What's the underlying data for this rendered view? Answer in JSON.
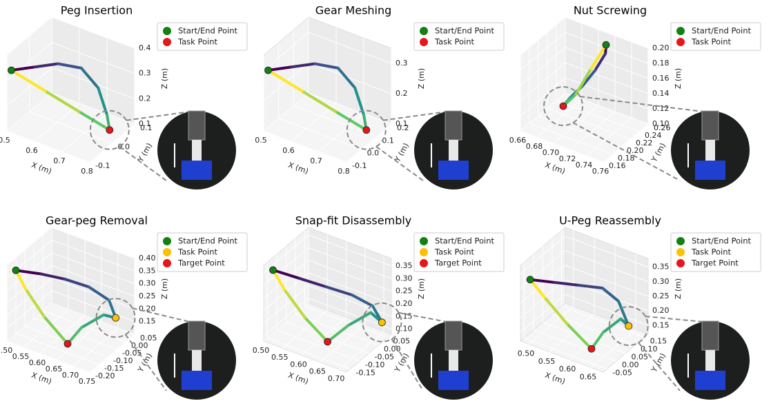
{
  "chart_data": [
    {
      "type": "line3d",
      "title": "Peg Insertion",
      "xlabel": "X (m)",
      "ylabel": "Y (m)",
      "zlabel": "Z (m)",
      "colormap": "viridis",
      "xlim": [
        0.5,
        0.8
      ],
      "ylim": [
        -0.1,
        0.1
      ],
      "zlim": [
        0.1,
        0.4
      ],
      "xticks": [
        0.5,
        0.6,
        0.7,
        0.8
      ],
      "yticks": [
        -0.1,
        {
          "value": 0,
          "label": "0.0"
        },
        0.1
      ],
      "zticks": [
        0.1,
        0.2,
        0.3,
        0.4
      ],
      "x": [
        0.5,
        0.56,
        0.62,
        0.68,
        0.725,
        0.749,
        0.755,
        0.68,
        0.59,
        0.5
      ],
      "y": [
        -0.08,
        -0.05,
        -0.02,
        0.01,
        0.03,
        0.04,
        0.044,
        0.0,
        -0.04,
        -0.08
      ],
      "z": [
        0.325,
        0.34,
        0.355,
        0.34,
        0.265,
        0.16,
        0.1,
        0.175,
        0.25,
        0.325
      ],
      "points": [
        {
          "name": "Start/End Point",
          "color": "#128012",
          "x": 0.5,
          "y": -0.08,
          "z": 0.325
        },
        {
          "name": "Task Point",
          "color": "#e8161b",
          "x": 0.755,
          "y": 0.044,
          "z": 0.1
        }
      ]
    },
    {
      "type": "line3d",
      "title": "Gear Meshing",
      "xlabel": "X (m)",
      "ylabel": "Y (m)",
      "zlabel": "Z (m)",
      "colormap": "viridis",
      "xlim": [
        0.5,
        0.8
      ],
      "ylim": [
        -0.1,
        0.2
      ],
      "zlim": [
        0.1,
        0.35
      ],
      "xticks": [
        0.5,
        0.6,
        0.7,
        0.8
      ],
      "yticks": [
        -0.1,
        {
          "value": 0,
          "label": "0.0"
        },
        0.1,
        0.2
      ],
      "zticks": [
        0.1,
        0.2,
        0.3
      ],
      "x": [
        0.5,
        0.56,
        0.62,
        0.68,
        0.725,
        0.749,
        0.755,
        0.68,
        0.59,
        0.5
      ],
      "y": [
        -0.07,
        -0.025,
        0.02,
        0.065,
        0.095,
        0.11,
        0.116,
        0.05,
        -0.01,
        -0.07
      ],
      "z": [
        0.2875,
        0.3,
        0.3125,
        0.3,
        0.2375,
        0.15,
        0.1,
        0.1625,
        0.225,
        0.2875
      ],
      "points": [
        {
          "name": "Start/End Point",
          "color": "#128012",
          "x": 0.5,
          "y": -0.07,
          "z": 0.2875
        },
        {
          "name": "Task Point",
          "color": "#e8161b",
          "x": 0.755,
          "y": 0.116,
          "z": 0.1
        }
      ]
    },
    {
      "type": "line3d",
      "title": "Nut Screwing",
      "xlabel": "X (m)",
      "ylabel": "Y (m)",
      "zlabel": "Z (m)",
      "colormap": "viridis",
      "xlim": [
        0.66,
        0.76
      ],
      "ylim": [
        0.16,
        0.26
      ],
      "zlim": [
        0.1,
        0.2
      ],
      "xticks": [
        0.66,
        0.68,
        {
          "value": 0.7,
          "label": "0.70"
        },
        0.72,
        0.74,
        0.76
      ],
      "yticks": [
        0.16,
        0.18,
        {
          "value": 0.2,
          "label": "0.20"
        },
        0.22,
        0.24,
        0.26
      ],
      "zticks": [
        {
          "value": 0.1,
          "label": "0.10"
        },
        0.12,
        0.14,
        0.16,
        0.18,
        {
          "value": 0.2,
          "label": "0.20"
        }
      ],
      "x": [
        0.72,
        0.722,
        0.715,
        0.705,
        0.695,
        0.69,
        0.7,
        0.71,
        0.72
      ],
      "y": [
        0.24,
        0.235,
        0.225,
        0.215,
        0.205,
        0.2,
        0.21,
        0.225,
        0.24
      ],
      "z": [
        0.198,
        0.19,
        0.17,
        0.15,
        0.135,
        0.125,
        0.14,
        0.17,
        0.198
      ],
      "points": [
        {
          "name": "Start/End Point",
          "color": "#128012",
          "x": 0.72,
          "y": 0.24,
          "z": 0.198
        },
        {
          "name": "Task Point",
          "color": "#e8161b",
          "x": 0.69,
          "y": 0.2,
          "z": 0.125
        }
      ]
    },
    {
      "type": "line3d",
      "title": "Gear-peg Removal",
      "xlabel": "X (m)",
      "ylabel": "Y (m)",
      "zlabel": "Z (m)",
      "colormap": "viridis",
      "xlim": [
        0.5,
        0.75
      ],
      "ylim": [
        -0.2,
        0.05
      ],
      "zlim": [
        0.1,
        0.4
      ],
      "xticks": [
        {
          "value": 0.5,
          "label": "0.50"
        },
        0.55,
        {
          "value": 0.6,
          "label": "0.60"
        },
        0.65,
        {
          "value": 0.7,
          "label": "0.70"
        },
        0.75
      ],
      "yticks": [
        {
          "value": -0.2,
          "label": "-0.20"
        },
        -0.15,
        {
          "value": -0.1,
          "label": "-0.10"
        },
        -0.05,
        {
          "value": 0,
          "label": "0.00"
        },
        0.05
      ],
      "zticks": [
        0.15,
        {
          "value": 0.2,
          "label": "0.20"
        },
        0.25,
        {
          "value": 0.3,
          "label": "0.30"
        },
        0.35,
        {
          "value": 0.4,
          "label": "0.40"
        }
      ],
      "x": [
        0.5,
        0.55,
        0.6,
        0.65,
        0.7,
        0.72,
        0.7,
        0.66,
        0.64,
        0.58,
        0.53,
        0.5
      ],
      "y": [
        -0.15,
        -0.1,
        -0.06,
        -0.02,
        0.0,
        0.0,
        -0.03,
        -0.08,
        -0.12,
        -0.14,
        -0.15,
        -0.15
      ],
      "z": [
        0.35,
        0.33,
        0.31,
        0.28,
        0.24,
        0.18,
        0.2,
        0.16,
        0.11,
        0.2,
        0.29,
        0.35
      ],
      "points": [
        {
          "name": "Start/End Point",
          "color": "#128012",
          "x": 0.5,
          "y": -0.15,
          "z": 0.35
        },
        {
          "name": "Task Point",
          "color": "#ffc000",
          "x": 0.72,
          "y": 0.0,
          "z": 0.18
        },
        {
          "name": "Target Point",
          "color": "#e8161b",
          "x": 0.64,
          "y": -0.12,
          "z": 0.11
        }
      ]
    },
    {
      "type": "line3d",
      "title": "Snap-fit Disassembly",
      "xlabel": "X (m)",
      "ylabel": "Y (m)",
      "zlabel": "Z (m)",
      "colormap": "viridis",
      "xlim": [
        0.5,
        0.72
      ],
      "ylim": [
        -0.17,
        0.07
      ],
      "zlim": [
        0.08,
        0.38
      ],
      "xticks": [
        {
          "value": 0.5,
          "label": "0.50"
        },
        0.55,
        {
          "value": 0.6,
          "label": "0.60"
        },
        0.65,
        {
          "value": 0.7,
          "label": "0.70"
        }
      ],
      "yticks": [
        -0.15,
        {
          "value": -0.1,
          "label": "-0.10"
        },
        -0.05,
        {
          "value": 0,
          "label": "0.00"
        },
        0.05
      ],
      "zticks": [
        {
          "value": 0.1,
          "label": "0.10"
        },
        0.15,
        {
          "value": 0.2,
          "label": "0.20"
        },
        0.25,
        {
          "value": 0.3,
          "label": "0.30"
        },
        0.35
      ],
      "x": [
        0.5,
        0.55,
        0.6,
        0.65,
        0.69,
        0.71,
        0.69,
        0.66,
        0.63,
        0.58,
        0.53,
        0.5
      ],
      "y": [
        -0.12,
        -0.08,
        -0.04,
        0.0,
        0.03,
        0.04,
        0.02,
        -0.04,
        -0.09,
        -0.11,
        -0.12,
        -0.12
      ],
      "z": [
        0.33,
        0.3,
        0.27,
        0.24,
        0.2,
        0.14,
        0.18,
        0.15,
        0.1,
        0.18,
        0.27,
        0.33
      ],
      "points": [
        {
          "name": "Start/End Point",
          "color": "#128012",
          "x": 0.5,
          "y": -0.12,
          "z": 0.33
        },
        {
          "name": "Task Point",
          "color": "#ffc000",
          "x": 0.71,
          "y": 0.04,
          "z": 0.14
        },
        {
          "name": "Target Point",
          "color": "#e8161b",
          "x": 0.63,
          "y": -0.09,
          "z": 0.1
        }
      ]
    },
    {
      "type": "line3d",
      "title": "U-Peg Reassembly",
      "xlabel": "X (m)",
      "ylabel": "Y (m)",
      "zlabel": "Z (m)",
      "colormap": "viridis",
      "xlim": [
        0.48,
        0.68
      ],
      "ylim": [
        -0.07,
        0.17
      ],
      "zlim": [
        0.12,
        0.38
      ],
      "xticks": [
        {
          "value": 0.5,
          "label": "0.50"
        },
        0.55,
        {
          "value": 0.6,
          "label": "0.60"
        },
        0.65
      ],
      "yticks": [
        -0.05,
        {
          "value": 0,
          "label": "0.00"
        },
        0.05,
        {
          "value": 0.1,
          "label": "0.10"
        },
        0.15
      ],
      "zticks": [
        0.15,
        {
          "value": 0.2,
          "label": "0.20"
        },
        0.25,
        {
          "value": 0.3,
          "label": "0.30"
        },
        0.35
      ],
      "x": [
        0.49,
        0.53,
        0.57,
        0.61,
        0.64,
        0.66,
        0.65,
        0.63,
        0.62,
        0.57,
        0.52,
        0.49
      ],
      "y": [
        -0.04,
        0.0,
        0.04,
        0.08,
        0.1,
        0.11,
        0.09,
        0.04,
        0.0,
        -0.02,
        -0.03,
        -0.04
      ],
      "z": [
        0.32,
        0.31,
        0.3,
        0.29,
        0.25,
        0.17,
        0.2,
        0.17,
        0.13,
        0.2,
        0.27,
        0.32
      ],
      "points": [
        {
          "name": "Start/End Point",
          "color": "#128012",
          "x": 0.49,
          "y": -0.04,
          "z": 0.32
        },
        {
          "name": "Task Point",
          "color": "#ffc000",
          "x": 0.66,
          "y": 0.11,
          "z": 0.17
        },
        {
          "name": "Target Point",
          "color": "#e8161b",
          "x": 0.62,
          "y": 0.0,
          "z": 0.13
        }
      ]
    }
  ]
}
